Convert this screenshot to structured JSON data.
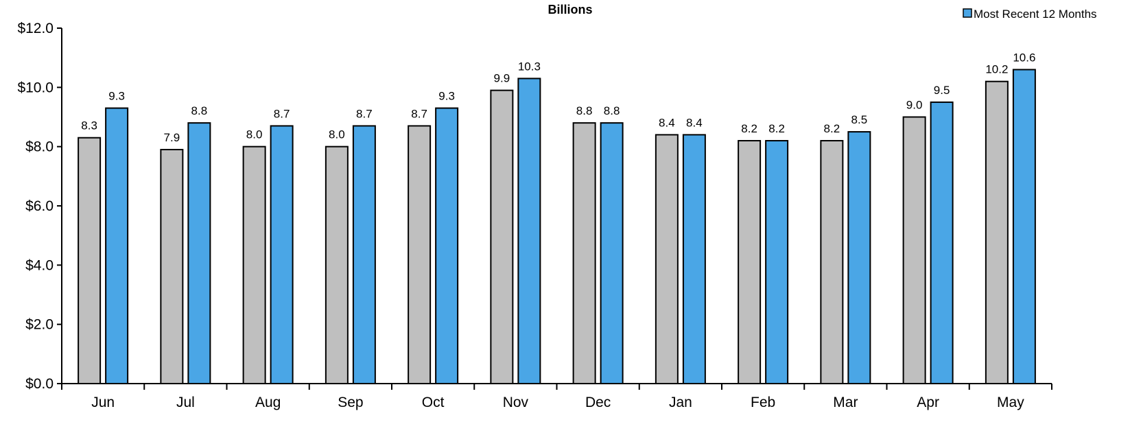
{
  "chart_data": {
    "type": "bar",
    "title": "Billions",
    "categories": [
      "Jun",
      "Jul",
      "Aug",
      "Sep",
      "Oct",
      "Nov",
      "Dec",
      "Jan",
      "Feb",
      "Mar",
      "Apr",
      "May"
    ],
    "series": [
      {
        "values": [
          8.3,
          7.9,
          8.0,
          8.0,
          8.7,
          9.9,
          8.8,
          8.4,
          8.2,
          8.2,
          9.0,
          10.2
        ],
        "color": "#bfbfbf"
      },
      {
        "name": "Most Recent 12 Months",
        "values": [
          9.3,
          8.8,
          8.7,
          8.7,
          9.3,
          10.3,
          8.8,
          8.4,
          8.2,
          8.5,
          9.5,
          10.6
        ],
        "color": "#4aa6e6"
      }
    ],
    "y_tick_labels": [
      "$0.0",
      "$2.0",
      "$4.0",
      "$6.0",
      "$8.0",
      "$10.0",
      "$12.0"
    ],
    "ylim": [
      0,
      12
    ],
    "y_step": 2,
    "legend": {
      "position": "top-right",
      "entries": [
        "Most Recent 12 Months"
      ]
    },
    "grid": false,
    "data_labels": true
  }
}
